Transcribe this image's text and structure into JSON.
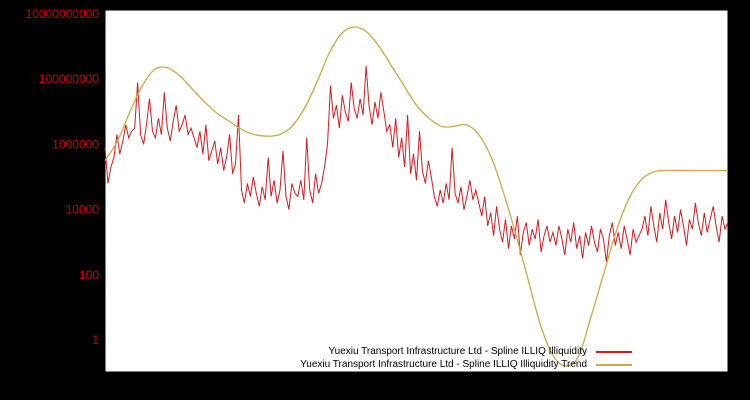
{
  "chart_data": {
    "type": "line",
    "title": "",
    "y_scale": "log",
    "grid": false,
    "background": "#000000",
    "plot_background": "#ffffff",
    "axis_label_color": "#cc0000",
    "y_range_log": [
      -0.98,
      10.12
    ],
    "y_ticks": [
      {
        "label": "10000000000",
        "log": 10
      },
      {
        "label": "100000000",
        "log": 8
      },
      {
        "label": "1000000",
        "log": 6
      },
      {
        "label": "10000",
        "log": 4
      },
      {
        "label": "100",
        "log": 2
      },
      {
        "label": "1",
        "log": 0
      }
    ],
    "legend": {
      "position": "bottom-center"
    },
    "series": [
      {
        "name": "Yuexiu Transport Infrastructure Ltd - Spline ILLIQ Illiquidity",
        "color": "#cc1f1f",
        "style": "noisy",
        "values_log10": [
          5.9,
          4.8,
          5.3,
          5.6,
          6.3,
          5.7,
          6.1,
          6.6,
          6.2,
          6.4,
          6.5,
          7.9,
          6.3,
          6.0,
          6.6,
          7.4,
          6.4,
          6.2,
          6.8,
          6.3,
          7.6,
          6.5,
          6.1,
          6.7,
          7.2,
          6.4,
          6.6,
          6.9,
          6.3,
          6.5,
          6.2,
          5.9,
          6.4,
          5.7,
          6.6,
          5.5,
          5.8,
          6.1,
          5.4,
          5.9,
          5.2,
          5.6,
          6.3,
          5.1,
          5.4,
          6.9,
          4.6,
          4.2,
          4.8,
          4.4,
          5.0,
          4.5,
          4.1,
          4.7,
          4.3,
          5.6,
          4.4,
          4.9,
          4.2,
          4.6,
          5.8,
          4.4,
          4.0,
          4.8,
          4.5,
          4.4,
          4.9,
          4.3,
          6.2,
          4.6,
          4.2,
          5.1,
          4.5,
          4.8,
          5.3,
          6.0,
          7.8,
          6.8,
          7.2,
          6.5,
          7.5,
          7.0,
          6.7,
          7.9,
          7.1,
          6.8,
          7.4,
          6.9,
          8.4,
          7.2,
          6.6,
          7.3,
          6.8,
          7.6,
          7.0,
          6.4,
          6.6,
          5.9,
          6.8,
          5.6,
          6.2,
          5.3,
          6.9,
          5.1,
          5.7,
          4.9,
          6.4,
          5.2,
          4.8,
          5.5,
          5.0,
          4.4,
          4.1,
          4.6,
          4.2,
          4.8,
          4.3,
          5.9,
          4.5,
          4.2,
          4.7,
          4.0,
          4.4,
          4.9,
          4.3,
          4.6,
          4.2,
          3.8,
          4.4,
          3.5,
          3.9,
          3.2,
          4.1,
          3.4,
          3.0,
          3.7,
          2.8,
          3.5,
          3.1,
          3.8,
          2.6,
          3.3,
          3.6,
          2.9,
          3.4,
          3.1,
          3.7,
          2.7,
          3.2,
          3.5,
          3.0,
          3.3,
          2.9,
          3.5,
          3.1,
          2.6,
          3.4,
          3.0,
          3.6,
          2.8,
          3.2,
          2.5,
          3.3,
          2.9,
          3.5,
          3.0,
          2.7,
          3.4,
          3.1,
          2.4,
          3.2,
          3.6,
          2.9,
          3.3,
          2.8,
          3.5,
          3.1,
          2.6,
          3.4,
          3.0,
          3.2,
          3.4,
          3.8,
          3.2,
          4.1,
          3.5,
          3.0,
          3.9,
          3.4,
          4.3,
          3.6,
          3.1,
          3.8,
          3.3,
          4.0,
          3.5,
          2.9,
          3.7,
          3.4,
          4.2,
          3.6,
          3.2,
          3.9,
          3.3,
          3.7,
          4.1,
          3.5,
          3.0,
          3.8,
          3.4,
          3.6
        ]
      },
      {
        "name": "Yuexiu Transport Infrastructure Ltd - Spline ILLIQ Illiquidity Trend",
        "color": "#ccaa44",
        "style": "smooth",
        "points": [
          [
            0.0,
            5.5
          ],
          [
            0.02,
            6.1
          ],
          [
            0.04,
            7.0
          ],
          [
            0.06,
            7.8
          ],
          [
            0.08,
            8.3
          ],
          [
            0.1,
            8.35
          ],
          [
            0.12,
            8.1
          ],
          [
            0.14,
            7.7
          ],
          [
            0.16,
            7.3
          ],
          [
            0.18,
            6.95
          ],
          [
            0.2,
            6.7
          ],
          [
            0.22,
            6.45
          ],
          [
            0.24,
            6.3
          ],
          [
            0.26,
            6.25
          ],
          [
            0.28,
            6.3
          ],
          [
            0.3,
            6.55
          ],
          [
            0.32,
            7.1
          ],
          [
            0.34,
            7.9
          ],
          [
            0.36,
            8.8
          ],
          [
            0.38,
            9.4
          ],
          [
            0.4,
            9.6
          ],
          [
            0.42,
            9.45
          ],
          [
            0.44,
            9.0
          ],
          [
            0.46,
            8.4
          ],
          [
            0.48,
            7.8
          ],
          [
            0.5,
            7.2
          ],
          [
            0.52,
            6.8
          ],
          [
            0.54,
            6.55
          ],
          [
            0.56,
            6.55
          ],
          [
            0.58,
            6.6
          ],
          [
            0.6,
            6.3
          ],
          [
            0.62,
            5.6
          ],
          [
            0.64,
            4.5
          ],
          [
            0.66,
            3.2
          ],
          [
            0.68,
            1.8
          ],
          [
            0.7,
            0.4
          ],
          [
            0.72,
            -0.5
          ],
          [
            0.74,
            -0.8
          ],
          [
            0.76,
            -0.5
          ],
          [
            0.78,
            0.7
          ],
          [
            0.8,
            2.0
          ],
          [
            0.82,
            3.3
          ],
          [
            0.84,
            4.3
          ],
          [
            0.86,
            4.9
          ],
          [
            0.88,
            5.15
          ],
          [
            0.9,
            5.2
          ],
          [
            0.95,
            5.2
          ],
          [
            1.0,
            5.2
          ]
        ]
      }
    ]
  }
}
